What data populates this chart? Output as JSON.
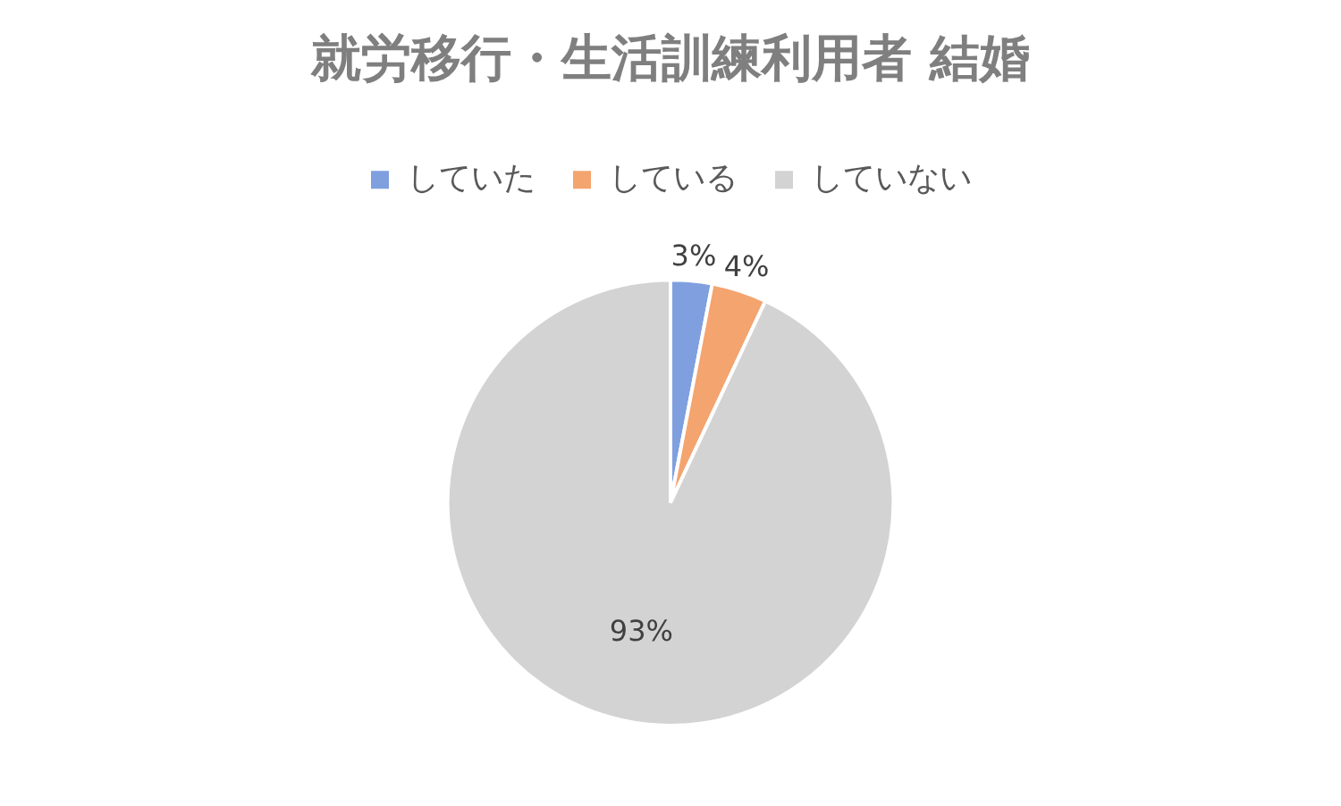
{
  "chart_data": {
    "type": "pie",
    "title": "就労移行・生活訓練利用者 結婚",
    "categories": [
      "していた",
      "している",
      "していない"
    ],
    "values": [
      3,
      4,
      93
    ],
    "colors": [
      "#7f9fdf",
      "#f4a46f",
      "#d3d3d3"
    ],
    "legend": "top",
    "value_labels": [
      "3%",
      "4%",
      "93%"
    ]
  }
}
